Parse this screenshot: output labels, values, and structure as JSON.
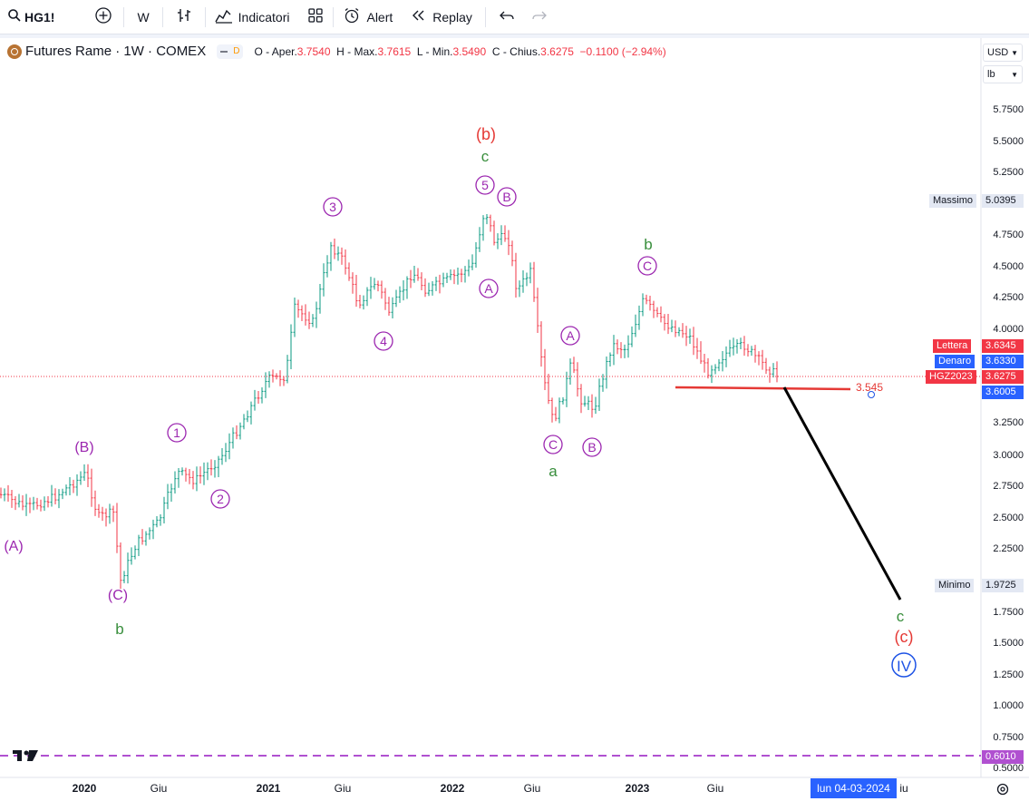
{
  "toolbar": {
    "symbol": "HG1!",
    "interval": "W",
    "indicators": "Indicatori",
    "alert": "Alert",
    "replay": "Replay"
  },
  "legend": {
    "title": "Futures Rame · 1W · COMEX",
    "pill_letter": "D",
    "open_label": "O - Aper.",
    "open": "3.7540",
    "high_label": "H - Max.",
    "high": "3.7615",
    "low_label": "L - Min.",
    "low": "3.5490",
    "close_label": "C - Chius.",
    "close": "3.6275",
    "change": "−0.1100 (−2.94%)"
  },
  "price_axis": {
    "currency": "USD",
    "unit": "lb",
    "ticks": [
      "5.7500",
      "5.5000",
      "5.2500",
      "4.7500",
      "4.5000",
      "4.2500",
      "4.0000",
      "3.2500",
      "3.0000",
      "2.7500",
      "2.5000",
      "2.2500",
      "1.7500",
      "1.5000",
      "1.2500",
      "1.0000",
      "0.7500",
      "0.5000"
    ],
    "max_label": "Massimo",
    "max_value": "5.0395",
    "min_label": "Minimo",
    "min_value": "1.9725",
    "ask_label": "Lettera",
    "ask_value": "3.6345",
    "bid_label": "Denaro",
    "bid_value": "3.6330",
    "contract_label": "HGZ2023",
    "contract_value": "3.6275",
    "crosshair_value": "3.6005",
    "bottom_line_value": "0.6010"
  },
  "time_axis": {
    "labels": [
      "2020",
      "Giu",
      "2021",
      "Giu",
      "2022",
      "Giu",
      "2023",
      "Giu",
      "iu"
    ],
    "cursor_date": "lun 04-03-2024"
  },
  "annotations": {
    "support_level": "3.545",
    "waves": [
      "(A)",
      "(B)",
      "(C)",
      "b",
      "1",
      "2",
      "3",
      "4",
      "5",
      "c",
      "(b)",
      "A",
      "B",
      "C",
      "a",
      "A",
      "B",
      "C",
      "b",
      "c",
      "(c)",
      "IV"
    ]
  },
  "colors": {
    "up": "#089981",
    "down": "#f23645",
    "purple": "#9c27b0",
    "green": "#388e3c",
    "red": "#e53935",
    "blue": "#1e53e5"
  }
}
